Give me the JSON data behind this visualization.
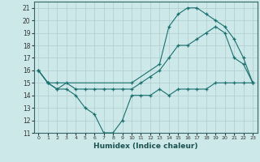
{
  "xlabel": "Humidex (Indice chaleur)",
  "background_color": "#cde8e8",
  "grid_color": "#b0cccc",
  "line_color": "#1a7070",
  "xlim": [
    -0.5,
    23.5
  ],
  "ylim": [
    11,
    21.5
  ],
  "xticks": [
    0,
    1,
    2,
    3,
    4,
    5,
    6,
    7,
    8,
    9,
    10,
    11,
    12,
    13,
    14,
    15,
    16,
    17,
    18,
    19,
    20,
    21,
    22,
    23
  ],
  "yticks": [
    11,
    12,
    13,
    14,
    15,
    16,
    17,
    18,
    19,
    20,
    21
  ],
  "line1_x": [
    0,
    1,
    2,
    3,
    4,
    5,
    6,
    7,
    8,
    9,
    10,
    11,
    12,
    13,
    14,
    15,
    16,
    17,
    18,
    19,
    20,
    21,
    22,
    23
  ],
  "line1_y": [
    16,
    15,
    14.5,
    14.5,
    14,
    13,
    12.5,
    11,
    11,
    12,
    14,
    14,
    14,
    14.5,
    14,
    14.5,
    14.5,
    14.5,
    14.5,
    15,
    15,
    15,
    15,
    15
  ],
  "line2_x": [
    0,
    1,
    2,
    3,
    4,
    5,
    6,
    7,
    8,
    9,
    10,
    11,
    12,
    13,
    14,
    15,
    16,
    17,
    18,
    19,
    20,
    21,
    22,
    23
  ],
  "line2_y": [
    16,
    15,
    14.5,
    15,
    14.5,
    14.5,
    14.5,
    14.5,
    14.5,
    14.5,
    14.5,
    15,
    15.5,
    16,
    17,
    18,
    18,
    18.5,
    19,
    19.5,
    19,
    17,
    16.5,
    15
  ],
  "line3_x": [
    0,
    1,
    2,
    10,
    13,
    14,
    15,
    16,
    17,
    18,
    19,
    20,
    21,
    22,
    23
  ],
  "line3_y": [
    16,
    15,
    15,
    15,
    16.5,
    19.5,
    20.5,
    21,
    21,
    20.5,
    20,
    19.5,
    18.5,
    17,
    15
  ]
}
